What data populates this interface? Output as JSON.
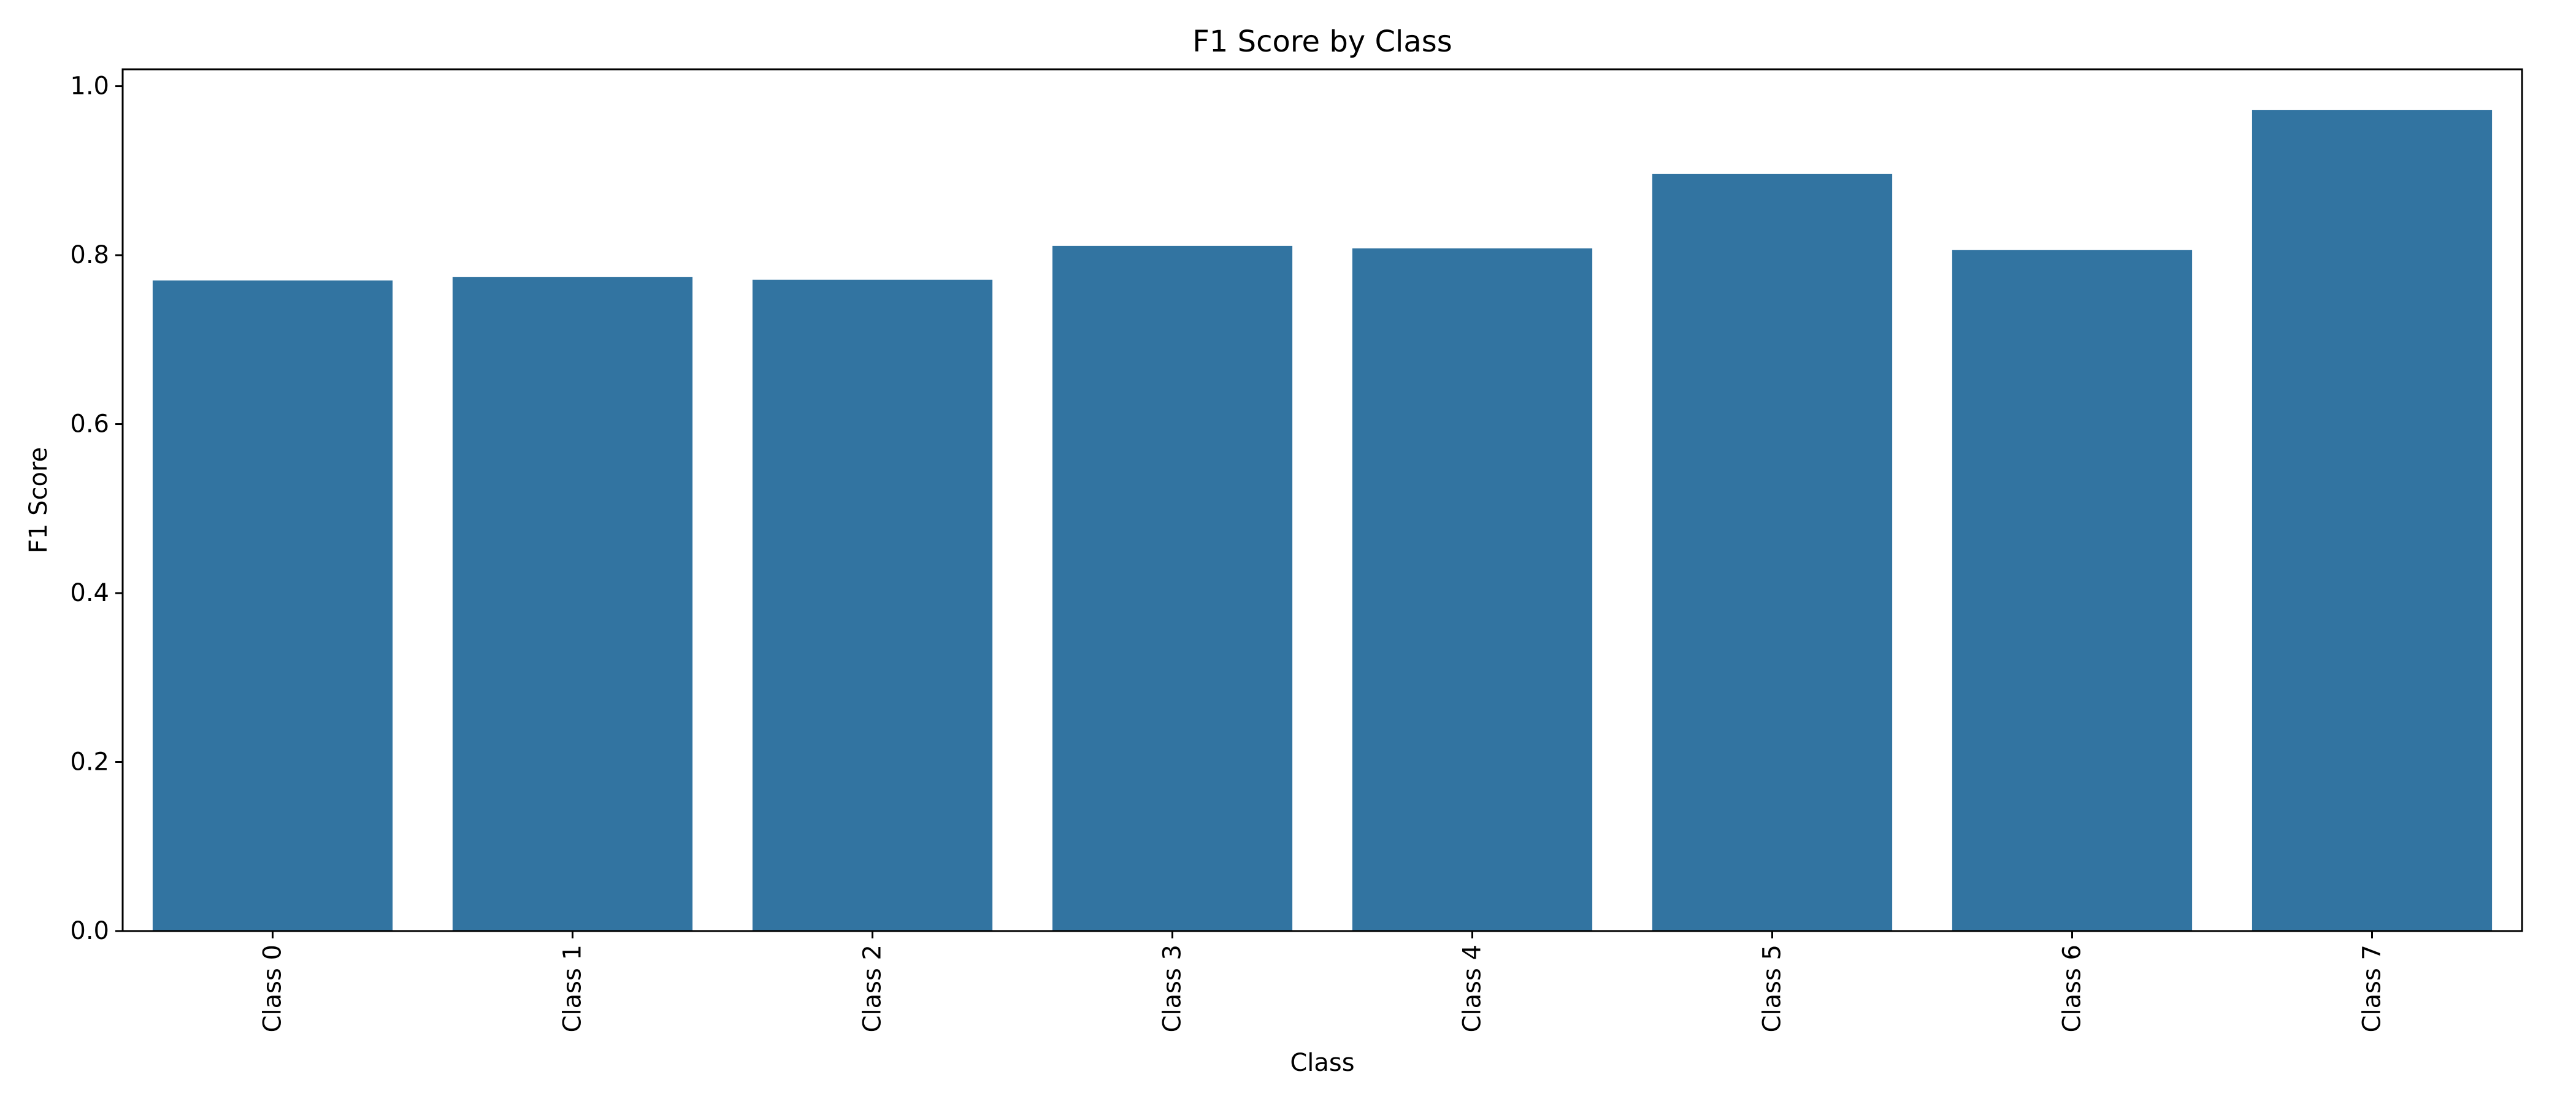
{
  "chart_data": {
    "type": "bar",
    "title": "F1 Score by Class",
    "xlabel": "Class",
    "ylabel": "F1 Score",
    "categories": [
      "Class 0",
      "Class 1",
      "Class 2",
      "Class 3",
      "Class 4",
      "Class 5",
      "Class 6",
      "Class 7"
    ],
    "values": [
      0.77,
      0.774,
      0.771,
      0.811,
      0.808,
      0.896,
      0.806,
      0.972
    ],
    "ylim": [
      0.0,
      1.02
    ],
    "yticks": [
      0.0,
      0.2,
      0.4,
      0.6,
      0.8,
      1.0
    ],
    "ytick_labels": [
      "0.0",
      "0.2",
      "0.4",
      "0.6",
      "0.8",
      "1.0"
    ],
    "grid": false,
    "legend": "none",
    "bar_color": "#3274a1"
  }
}
